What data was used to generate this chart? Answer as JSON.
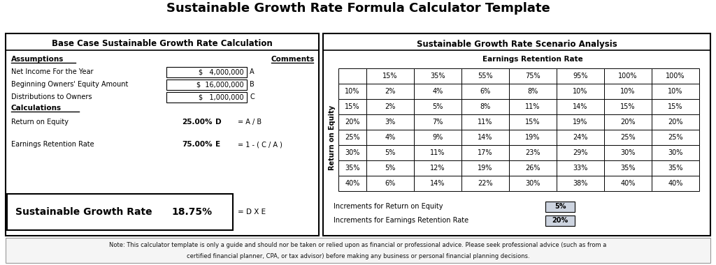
{
  "title": "Sustainable Growth Rate Formula Calculator Template",
  "left_panel_title": "Base Case Sustainable Growth Rate Calculation",
  "right_panel_title": "Sustainable Growth Rate Scenario Analysis",
  "assumptions_label": "Assumptions",
  "comments_label": "Comments",
  "assumptions": [
    {
      "label": "Net Income For the Year",
      "value": "$   4,000,000",
      "letter": "A"
    },
    {
      "label": "Beginning Owners' Equity Amount",
      "value": "$  16,000,000",
      "letter": "B"
    },
    {
      "label": "Distributions to Owners",
      "value": "$   1,000,000",
      "letter": "C"
    }
  ],
  "calculations_label": "Calculations",
  "calculations": [
    {
      "label": "Return on Equity",
      "value": "25.00%",
      "letter": "D",
      "formula": "= A / B"
    },
    {
      "label": "Earnings Retention Rate",
      "value": "75.00%",
      "letter": "E",
      "formula": "= 1 - ( C / A )"
    }
  ],
  "sgr_label": "Sustainable Growth Rate",
  "sgr_value": "18.75%",
  "sgr_formula": "= D X E",
  "earnings_retention_label": "Earnings Retention Rate",
  "roe_label": "Return on Equity",
  "col_headers": [
    "15%",
    "35%",
    "55%",
    "75%",
    "95%",
    "100%",
    "100%"
  ],
  "row_headers": [
    "10%",
    "15%",
    "20%",
    "25%",
    "30%",
    "35%",
    "40%"
  ],
  "table_data": [
    [
      "2%",
      "4%",
      "6%",
      "8%",
      "10%",
      "10%",
      "10%"
    ],
    [
      "2%",
      "5%",
      "8%",
      "11%",
      "14%",
      "15%",
      "15%"
    ],
    [
      "3%",
      "7%",
      "11%",
      "15%",
      "19%",
      "20%",
      "20%"
    ],
    [
      "4%",
      "9%",
      "14%",
      "19%",
      "24%",
      "25%",
      "25%"
    ],
    [
      "5%",
      "11%",
      "17%",
      "23%",
      "29%",
      "30%",
      "30%"
    ],
    [
      "5%",
      "12%",
      "19%",
      "26%",
      "33%",
      "35%",
      "35%"
    ],
    [
      "6%",
      "14%",
      "22%",
      "30%",
      "38%",
      "40%",
      "40%"
    ]
  ],
  "increment_roe_label": "Increments for Return on Equity",
  "increment_roe_value": "5%",
  "increment_err_label": "Increments for Earnings Retention Rate",
  "increment_err_value": "20%",
  "note_line1": "Note: This calculator template is only a guide and should nor be taken or relied upon as financial or professional advice. Please seek professional advice (such as from a",
  "note_line2": "certified financial planner, CPA, or tax advisor) before making any business or personal financial planning decisions.",
  "bg_color": "#ffffff",
  "cell_fill_light": "#cdd4e0",
  "note_bg": "#f5f5f5"
}
